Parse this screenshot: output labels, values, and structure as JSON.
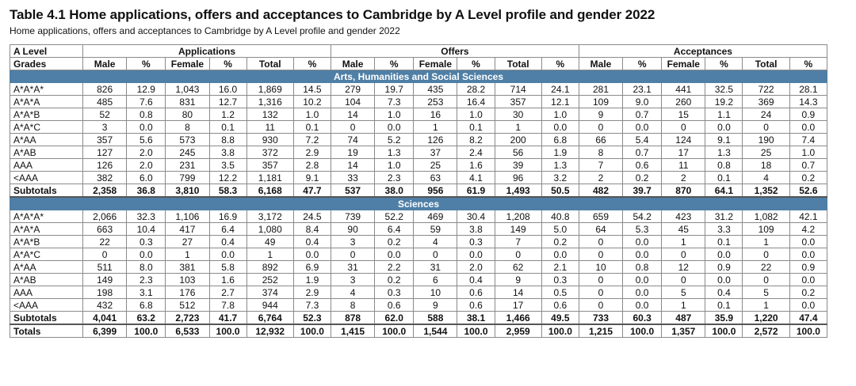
{
  "title": "Table 4.1 Home applications, offers and acceptances to Cambridge by A Level profile and gender 2022",
  "subtitle": "Home applications, offers and acceptances to Cambridge by A Level profile and gender 2022",
  "header": {
    "grade_line1": "A Level",
    "grade_line2": "Grades",
    "groups": [
      "Applications",
      "Offers",
      "Acceptances"
    ],
    "columns": [
      "Male",
      "%",
      "Female",
      "%",
      "Total",
      "%"
    ]
  },
  "sections": [
    {
      "name": "Arts, Humanities and Social Sciences",
      "rows": [
        {
          "grade": "A*A*A*",
          "cells": [
            "826",
            "12.9",
            "1,043",
            "16.0",
            "1,869",
            "14.5",
            "279",
            "19.7",
            "435",
            "28.2",
            "714",
            "24.1",
            "281",
            "23.1",
            "441",
            "32.5",
            "722",
            "28.1"
          ]
        },
        {
          "grade": "A*A*A",
          "cells": [
            "485",
            "7.6",
            "831",
            "12.7",
            "1,316",
            "10.2",
            "104",
            "7.3",
            "253",
            "16.4",
            "357",
            "12.1",
            "109",
            "9.0",
            "260",
            "19.2",
            "369",
            "14.3"
          ]
        },
        {
          "grade": "A*A*B",
          "cells": [
            "52",
            "0.8",
            "80",
            "1.2",
            "132",
            "1.0",
            "14",
            "1.0",
            "16",
            "1.0",
            "30",
            "1.0",
            "9",
            "0.7",
            "15",
            "1.1",
            "24",
            "0.9"
          ]
        },
        {
          "grade": "A*A*C",
          "cells": [
            "3",
            "0.0",
            "8",
            "0.1",
            "11",
            "0.1",
            "0",
            "0.0",
            "1",
            "0.1",
            "1",
            "0.0",
            "0",
            "0.0",
            "0",
            "0.0",
            "0",
            "0.0"
          ]
        },
        {
          "grade": "A*AA",
          "cells": [
            "357",
            "5.6",
            "573",
            "8.8",
            "930",
            "7.2",
            "74",
            "5.2",
            "126",
            "8.2",
            "200",
            "6.8",
            "66",
            "5.4",
            "124",
            "9.1",
            "190",
            "7.4"
          ]
        },
        {
          "grade": "A*AB",
          "cells": [
            "127",
            "2.0",
            "245",
            "3.8",
            "372",
            "2.9",
            "19",
            "1.3",
            "37",
            "2.4",
            "56",
            "1.9",
            "8",
            "0.7",
            "17",
            "1.3",
            "25",
            "1.0"
          ]
        },
        {
          "grade": "AAA",
          "cells": [
            "126",
            "2.0",
            "231",
            "3.5",
            "357",
            "2.8",
            "14",
            "1.0",
            "25",
            "1.6",
            "39",
            "1.3",
            "7",
            "0.6",
            "11",
            "0.8",
            "18",
            "0.7"
          ]
        },
        {
          "grade": "<AAA",
          "cells": [
            "382",
            "6.0",
            "799",
            "12.2",
            "1,181",
            "9.1",
            "33",
            "2.3",
            "63",
            "4.1",
            "96",
            "3.2",
            "2",
            "0.2",
            "2",
            "0.1",
            "4",
            "0.2"
          ]
        }
      ],
      "subtotal": {
        "grade": "Subtotals",
        "cells": [
          "2,358",
          "36.8",
          "3,810",
          "58.3",
          "6,168",
          "47.7",
          "537",
          "38.0",
          "956",
          "61.9",
          "1,493",
          "50.5",
          "482",
          "39.7",
          "870",
          "64.1",
          "1,352",
          "52.6"
        ]
      }
    },
    {
      "name": "Sciences",
      "rows": [
        {
          "grade": "A*A*A*",
          "cells": [
            "2,066",
            "32.3",
            "1,106",
            "16.9",
            "3,172",
            "24.5",
            "739",
            "52.2",
            "469",
            "30.4",
            "1,208",
            "40.8",
            "659",
            "54.2",
            "423",
            "31.2",
            "1,082",
            "42.1"
          ]
        },
        {
          "grade": "A*A*A",
          "cells": [
            "663",
            "10.4",
            "417",
            "6.4",
            "1,080",
            "8.4",
            "90",
            "6.4",
            "59",
            "3.8",
            "149",
            "5.0",
            "64",
            "5.3",
            "45",
            "3.3",
            "109",
            "4.2"
          ]
        },
        {
          "grade": "A*A*B",
          "cells": [
            "22",
            "0.3",
            "27",
            "0.4",
            "49",
            "0.4",
            "3",
            "0.2",
            "4",
            "0.3",
            "7",
            "0.2",
            "0",
            "0.0",
            "1",
            "0.1",
            "1",
            "0.0"
          ]
        },
        {
          "grade": "A*A*C",
          "cells": [
            "0",
            "0.0",
            "1",
            "0.0",
            "1",
            "0.0",
            "0",
            "0.0",
            "0",
            "0.0",
            "0",
            "0.0",
            "0",
            "0.0",
            "0",
            "0.0",
            "0",
            "0.0"
          ]
        },
        {
          "grade": "A*AA",
          "cells": [
            "511",
            "8.0",
            "381",
            "5.8",
            "892",
            "6.9",
            "31",
            "2.2",
            "31",
            "2.0",
            "62",
            "2.1",
            "10",
            "0.8",
            "12",
            "0.9",
            "22",
            "0.9"
          ]
        },
        {
          "grade": "A*AB",
          "cells": [
            "149",
            "2.3",
            "103",
            "1.6",
            "252",
            "1.9",
            "3",
            "0.2",
            "6",
            "0.4",
            "9",
            "0.3",
            "0",
            "0.0",
            "0",
            "0.0",
            "0",
            "0.0"
          ]
        },
        {
          "grade": "AAA",
          "cells": [
            "198",
            "3.1",
            "176",
            "2.7",
            "374",
            "2.9",
            "4",
            "0.3",
            "10",
            "0.6",
            "14",
            "0.5",
            "0",
            "0.0",
            "5",
            "0.4",
            "5",
            "0.2"
          ]
        },
        {
          "grade": "<AAA",
          "cells": [
            "432",
            "6.8",
            "512",
            "7.8",
            "944",
            "7.3",
            "8",
            "0.6",
            "9",
            "0.6",
            "17",
            "0.6",
            "0",
            "0.0",
            "1",
            "0.1",
            "1",
            "0.0"
          ]
        }
      ],
      "subtotal": {
        "grade": "Subtotals",
        "cells": [
          "4,041",
          "63.2",
          "2,723",
          "41.7",
          "6,764",
          "52.3",
          "878",
          "62.0",
          "588",
          "38.1",
          "1,466",
          "49.5",
          "733",
          "60.3",
          "487",
          "35.9",
          "1,220",
          "47.4"
        ]
      }
    }
  ],
  "totals": {
    "grade": "Totals",
    "cells": [
      "6,399",
      "100.0",
      "6,533",
      "100.0",
      "12,932",
      "100.0",
      "1,415",
      "100.0",
      "1,544",
      "100.0",
      "2,959",
      "100.0",
      "1,215",
      "100.0",
      "1,357",
      "100.0",
      "2,572",
      "100.0"
    ]
  }
}
